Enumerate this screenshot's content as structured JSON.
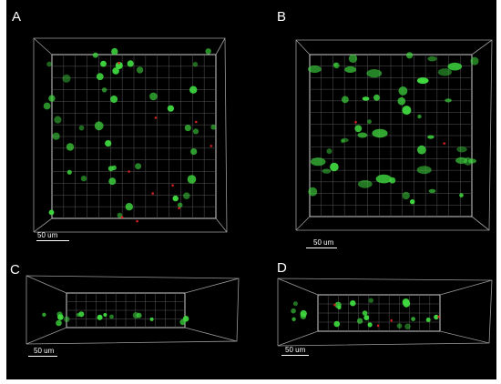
{
  "figure": {
    "panels": [
      {
        "label": "A",
        "scale_label": "50 um"
      },
      {
        "label": "B",
        "scale_label": "50 um"
      },
      {
        "label": "C",
        "scale_label": "50 um"
      },
      {
        "label": "D",
        "scale_label": "50 um"
      }
    ],
    "colors": {
      "background": "#000000",
      "grid": "#9a9a9a",
      "cell_green": "#3fd83f",
      "cell_red": "#d02020",
      "text": "#ffffff"
    }
  }
}
